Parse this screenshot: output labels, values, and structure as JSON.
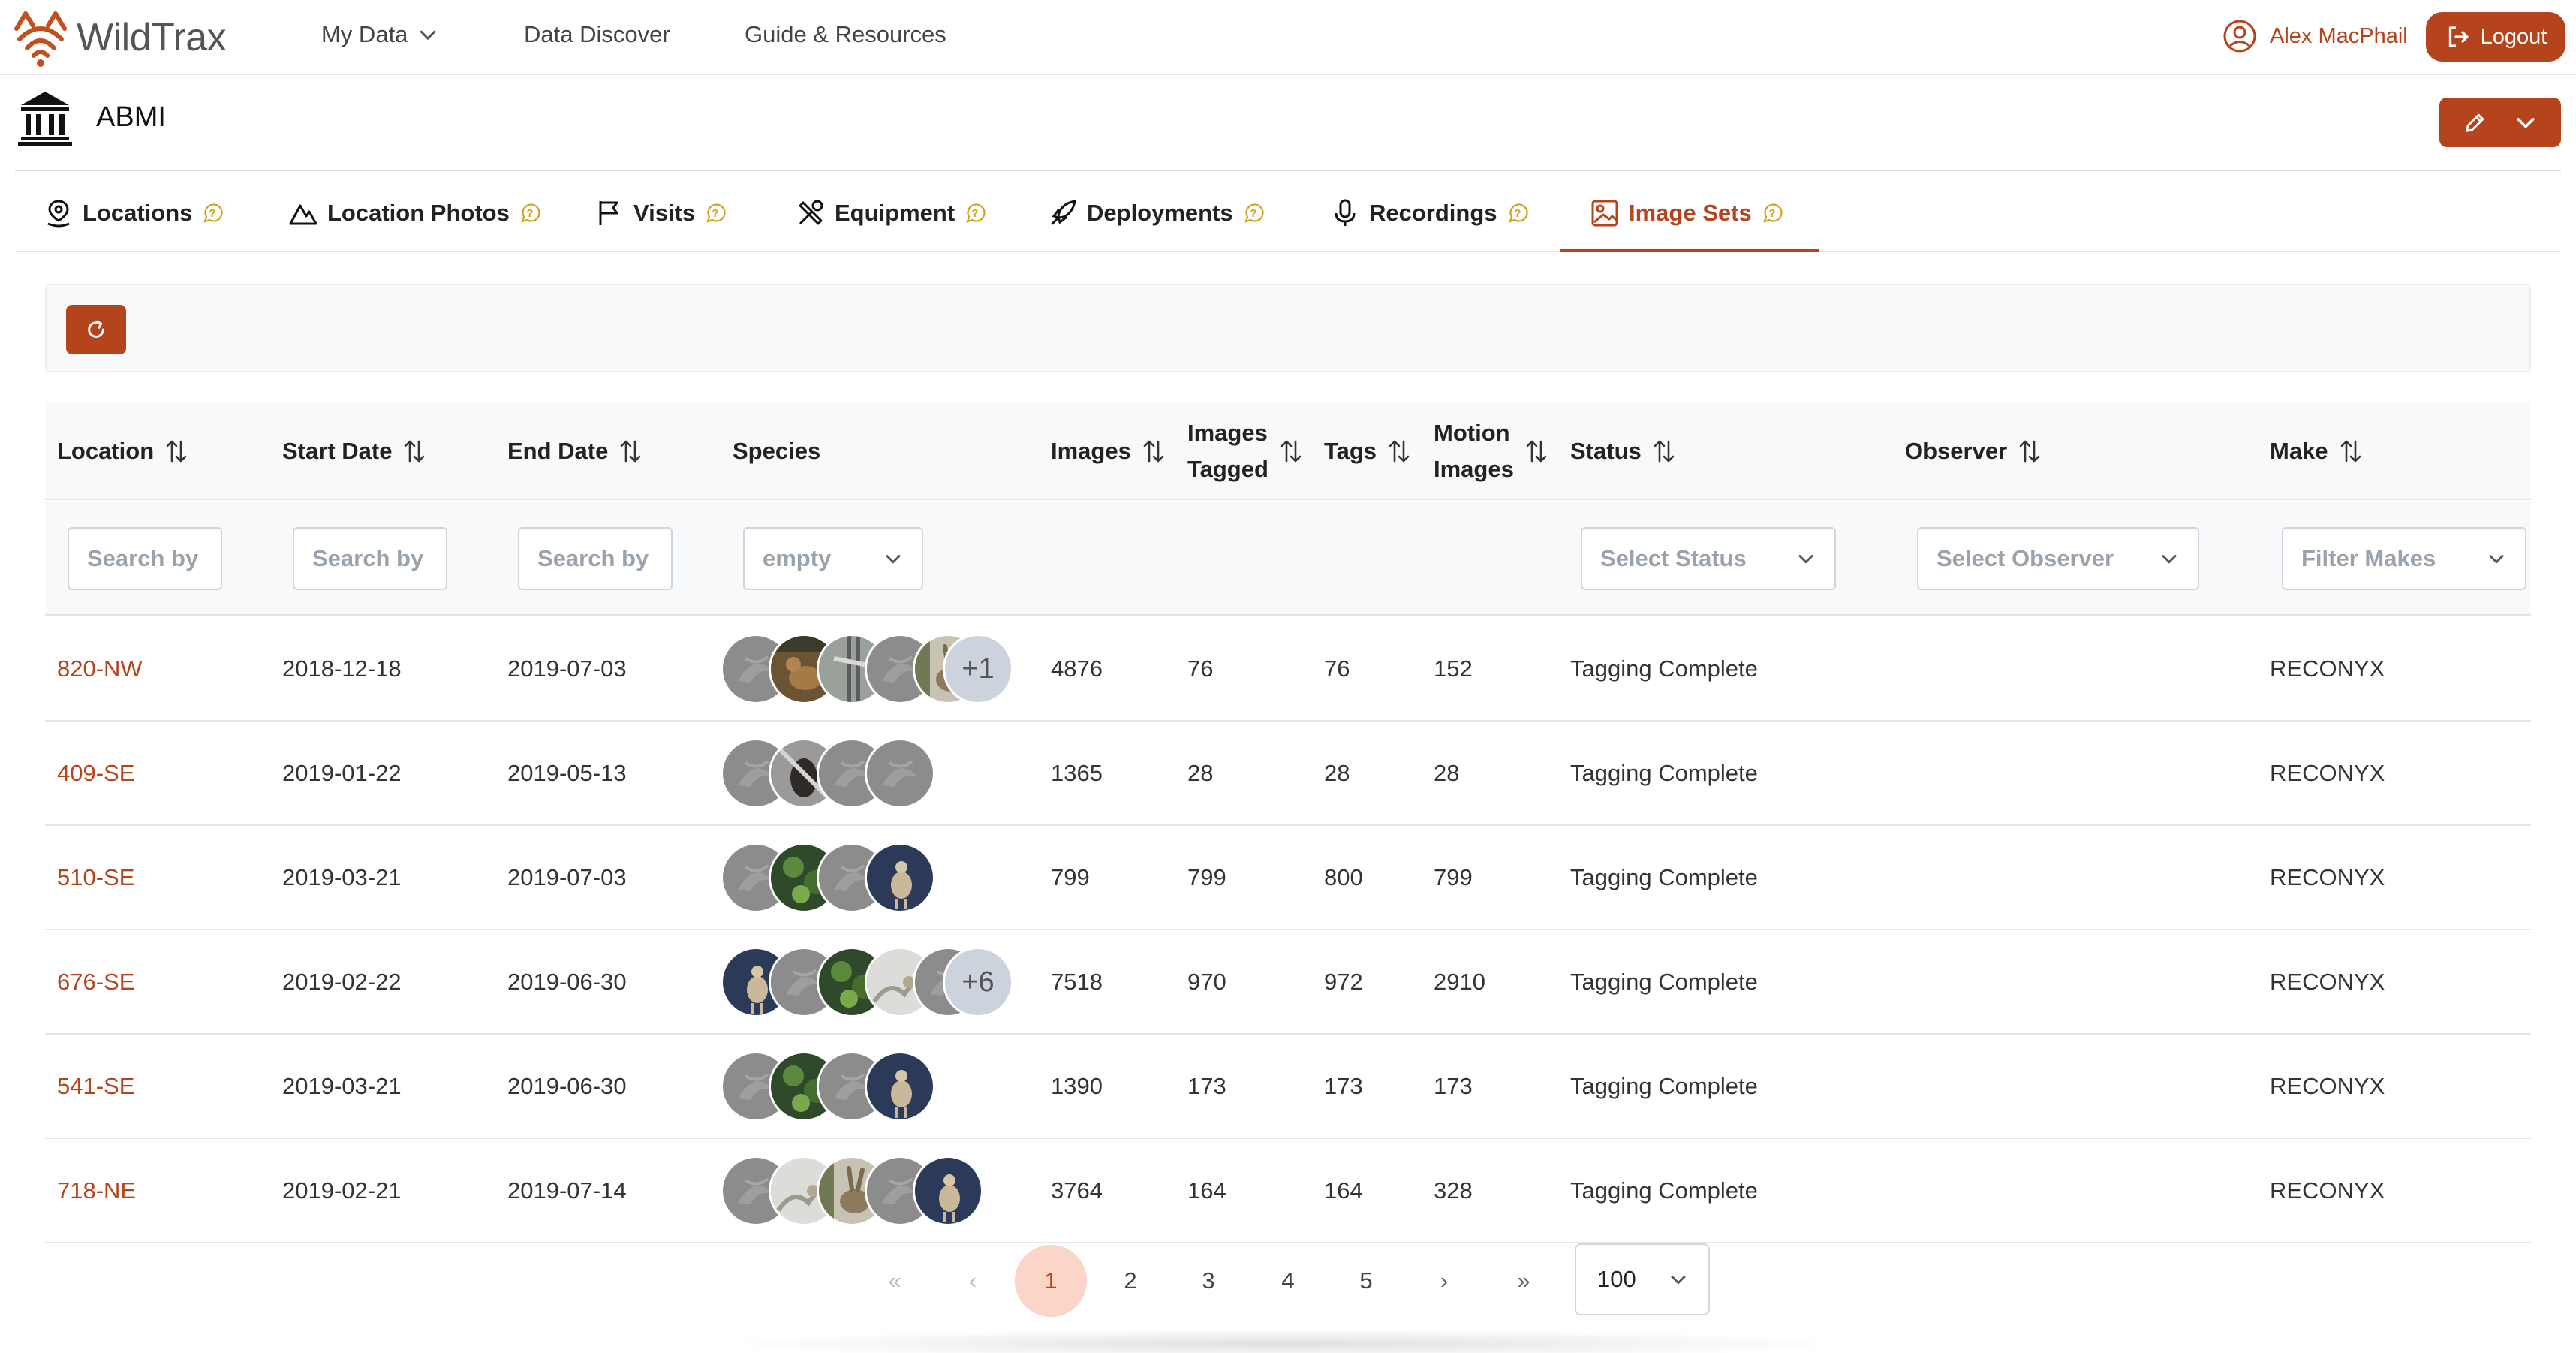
{
  "app": {
    "name": "WildTrax"
  },
  "nav": {
    "my_data": "My Data",
    "data_discover": "Data Discover",
    "guide": "Guide & Resources",
    "user": "Alex MacPhail",
    "logout": "Logout"
  },
  "org": {
    "name": "ABMI"
  },
  "tabs": [
    {
      "label": "Locations"
    },
    {
      "label": "Location Photos"
    },
    {
      "label": "Visits"
    },
    {
      "label": "Equipment"
    },
    {
      "label": "Deployments"
    },
    {
      "label": "Recordings"
    },
    {
      "label": "Image Sets",
      "active": true
    }
  ],
  "table": {
    "columns": {
      "location": "Location",
      "start_date": "Start Date",
      "end_date": "End Date",
      "species": "Species",
      "images": "Images",
      "images_tagged_1": "Images",
      "images_tagged_2": "Tagged",
      "tags": "Tags",
      "motion_images_1": "Motion",
      "motion_images_2": "Images",
      "status": "Status",
      "observer": "Observer",
      "make": "Make"
    },
    "filters": {
      "location_placeholder": "Search by location",
      "start_placeholder": "Search by date",
      "end_placeholder": "Search by date",
      "species_value": "empty",
      "status_placeholder": "Select Status",
      "observer_placeholder": "Select Observer",
      "make_placeholder": "Filter Makes"
    },
    "rows": [
      {
        "location": "820-NW",
        "start": "2018-12-18",
        "end": "2019-07-03",
        "species": [
          "gray",
          "deer-brown",
          "tree",
          "gray",
          "rabbit"
        ],
        "more": "+1",
        "images": "4876",
        "tagged": "76",
        "tags": "76",
        "motion": "152",
        "status": "Tagging Complete",
        "observer": "",
        "make": "RECONYX"
      },
      {
        "location": "409-SE",
        "start": "2019-01-22",
        "end": "2019-05-13",
        "species": [
          "gray",
          "dark-animal",
          "gray",
          "gray"
        ],
        "more": "",
        "images": "1365",
        "tagged": "28",
        "tags": "28",
        "motion": "28",
        "status": "Tagging Complete",
        "observer": "",
        "make": "RECONYX"
      },
      {
        "location": "510-SE",
        "start": "2019-03-21",
        "end": "2019-07-03",
        "species": [
          "gray",
          "forest",
          "gray",
          "deer-night"
        ],
        "more": "",
        "images": "799",
        "tagged": "799",
        "tags": "800",
        "motion": "799",
        "status": "Tagging Complete",
        "observer": "",
        "make": "RECONYX"
      },
      {
        "location": "676-SE",
        "start": "2019-02-22",
        "end": "2019-06-30",
        "species": [
          "deer-night",
          "gray",
          "forest",
          "snow",
          "gray"
        ],
        "more": "+6",
        "images": "7518",
        "tagged": "970",
        "tags": "972",
        "motion": "2910",
        "status": "Tagging Complete",
        "observer": "",
        "make": "RECONYX"
      },
      {
        "location": "541-SE",
        "start": "2019-03-21",
        "end": "2019-06-30",
        "species": [
          "gray",
          "forest",
          "gray",
          "deer-night"
        ],
        "more": "",
        "images": "1390",
        "tagged": "173",
        "tags": "173",
        "motion": "173",
        "status": "Tagging Complete",
        "observer": "",
        "make": "RECONYX"
      },
      {
        "location": "718-NE",
        "start": "2019-02-21",
        "end": "2019-07-14",
        "species": [
          "gray",
          "snow",
          "rabbit",
          "gray",
          "deer-night"
        ],
        "more": "",
        "images": "3764",
        "tagged": "164",
        "tags": "164",
        "motion": "328",
        "status": "Tagging Complete",
        "observer": "",
        "make": "RECONYX"
      }
    ]
  },
  "pagination": {
    "first": "«",
    "prev": "‹",
    "pages": [
      "1",
      "2",
      "3",
      "4",
      "5"
    ],
    "current": "1",
    "next": "›",
    "last": "»",
    "per_page": "100"
  },
  "colors": {
    "accent": "#b5441d",
    "help": "#d4a017"
  },
  "icons": [
    "logo-icon",
    "chevron-down-icon",
    "user-circle-icon",
    "logout-icon",
    "institution-icon",
    "pencil-icon",
    "location-pin-icon",
    "mountain-icon",
    "flag-icon",
    "tools-icon",
    "rocket-icon",
    "microphone-icon",
    "image-icon",
    "help-icon",
    "refresh-icon",
    "sort-icon"
  ]
}
